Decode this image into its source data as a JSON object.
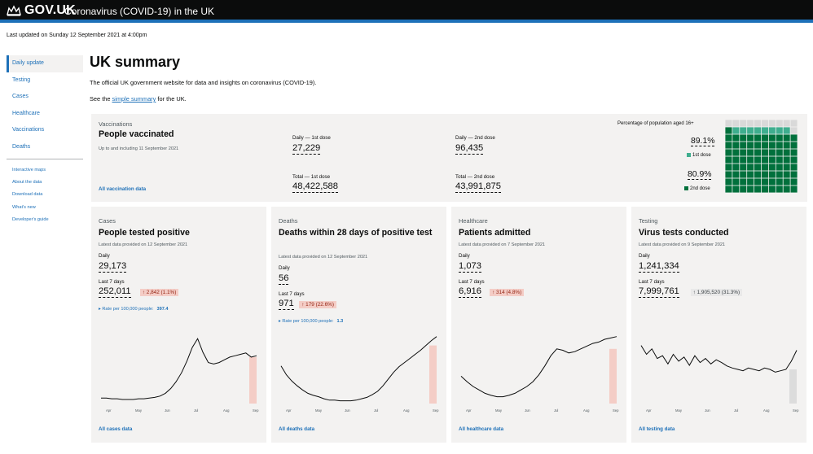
{
  "header": {
    "brand": "GOV.UK",
    "service": "Coronavirus (COVID-19) in the UK"
  },
  "updated": "Last updated on Sunday 12 September 2021 at 4:00pm",
  "sidebar": {
    "items": [
      {
        "label": "Daily update",
        "active": true
      },
      {
        "label": "Testing"
      },
      {
        "label": "Cases"
      },
      {
        "label": "Healthcare"
      },
      {
        "label": "Vaccinations"
      },
      {
        "label": "Deaths"
      }
    ],
    "sub": [
      "Interactive maps",
      "About the data",
      "Download data",
      "What's new",
      "Developer's guide"
    ]
  },
  "main": {
    "title": "UK summary",
    "lead": "The official UK government website for data and insights on coronavirus (COVID-19).",
    "see_pre": "See the",
    "see_link": "simple summary",
    "see_post": "for the UK."
  },
  "vaccinations": {
    "caption": "Vaccinations",
    "title": "People vaccinated",
    "note": "Up to and including 11 September 2021",
    "daily_1st_label": "Daily — 1st dose",
    "daily_1st": "27,229",
    "total_1st_label": "Total — 1st dose",
    "total_1st": "48,422,588",
    "daily_2nd_label": "Daily — 2nd dose",
    "daily_2nd": "96,435",
    "total_2nd_label": "Total — 2nd dose",
    "total_2nd": "43,991,875",
    "pop_label": "Percentage of population aged 16+",
    "first_pct": "89.1%",
    "first_key": "1st dose",
    "second_pct": "80.9%",
    "second_key": "2nd dose",
    "first_fraction": 0.891,
    "second_fraction": 0.809,
    "link": "All vaccination data",
    "colors": {
      "first": "#3fae8f",
      "second": "#00703c",
      "empty": "#d9d9d9"
    }
  },
  "cards": [
    {
      "caption": "Cases",
      "title": "People tested positive",
      "note": "Latest data provided on 12 September 2021",
      "daily_label": "Daily",
      "daily": "29,173",
      "week_label": "Last 7 days",
      "week": "252,011",
      "change": "2,842 (1.1%)",
      "change_arrow": "↑",
      "change_type": "up",
      "rate_label": "Rate per 100,000 people:",
      "rate_value": "397.4",
      "link": "All cases data",
      "months": [
        "Apr",
        "May",
        "Jun",
        "Jul",
        "Aug",
        "Sep"
      ],
      "series": [
        0.08,
        0.08,
        0.07,
        0.07,
        0.06,
        0.06,
        0.06,
        0.07,
        0.07,
        0.08,
        0.09,
        0.11,
        0.15,
        0.22,
        0.32,
        0.45,
        0.62,
        0.82,
        0.95,
        0.75,
        0.6,
        0.58,
        0.6,
        0.64,
        0.68,
        0.7,
        0.72,
        0.74,
        0.68,
        0.7
      ],
      "highlight": 0.68
    },
    {
      "caption": "Deaths",
      "title": "Deaths within 28 days of positive test",
      "note": "Latest data provided on 12 September 2021",
      "daily_label": "Daily",
      "daily": "56",
      "week_label": "Last 7 days",
      "week": "971",
      "change": "179 (22.6%)",
      "change_arrow": "↑",
      "change_type": "up",
      "rate_label": "Rate per 100,000 people:",
      "rate_value": "1.3",
      "link": "All deaths data",
      "months": [
        "Apr",
        "May",
        "Jun",
        "Jul",
        "Aug",
        "Sep"
      ],
      "series": [
        0.55,
        0.42,
        0.33,
        0.26,
        0.2,
        0.15,
        0.12,
        0.1,
        0.07,
        0.05,
        0.05,
        0.04,
        0.04,
        0.04,
        0.05,
        0.07,
        0.09,
        0.13,
        0.18,
        0.26,
        0.36,
        0.46,
        0.54,
        0.6,
        0.66,
        0.72,
        0.78,
        0.85,
        0.92,
        0.98
      ],
      "highlight": 0.85
    },
    {
      "caption": "Healthcare",
      "title": "Patients admitted",
      "note": "Latest data provided on 7 September 2021",
      "daily_label": "Daily",
      "daily": "1,073",
      "week_label": "Last 7 days",
      "week": "6,916",
      "change": "314 (4.8%)",
      "change_arrow": "↑",
      "change_type": "up",
      "link": "All healthcare data",
      "months": [
        "Apr",
        "May",
        "Jun",
        "Jul",
        "Aug",
        "Sep"
      ],
      "series": [
        0.4,
        0.32,
        0.25,
        0.2,
        0.15,
        0.12,
        0.1,
        0.1,
        0.12,
        0.15,
        0.2,
        0.25,
        0.32,
        0.42,
        0.55,
        0.7,
        0.8,
        0.78,
        0.74,
        0.76,
        0.8,
        0.84,
        0.88,
        0.9,
        0.94,
        0.96,
        0.98
      ],
      "highlight": 0.8
    },
    {
      "caption": "Testing",
      "title": "Virus tests conducted",
      "note": "Latest data provided on 9 September 2021",
      "daily_label": "Daily",
      "daily": "1,241,334",
      "week_label": "Last 7 days",
      "week": "7,999,761",
      "change": "1,905,520 (31.3%)",
      "change_arrow": "↑",
      "change_type": "neutral",
      "link": "All testing data",
      "months": [
        "Apr",
        "May",
        "Jun",
        "Jul",
        "Aug",
        "Sep"
      ],
      "series": [
        0.85,
        0.72,
        0.8,
        0.66,
        0.7,
        0.58,
        0.72,
        0.62,
        0.68,
        0.56,
        0.7,
        0.6,
        0.66,
        0.58,
        0.64,
        0.6,
        0.55,
        0.52,
        0.5,
        0.48,
        0.52,
        0.5,
        0.48,
        0.52,
        0.5,
        0.46,
        0.48,
        0.5,
        0.62,
        0.78
      ],
      "highlight": 0.5
    }
  ]
}
